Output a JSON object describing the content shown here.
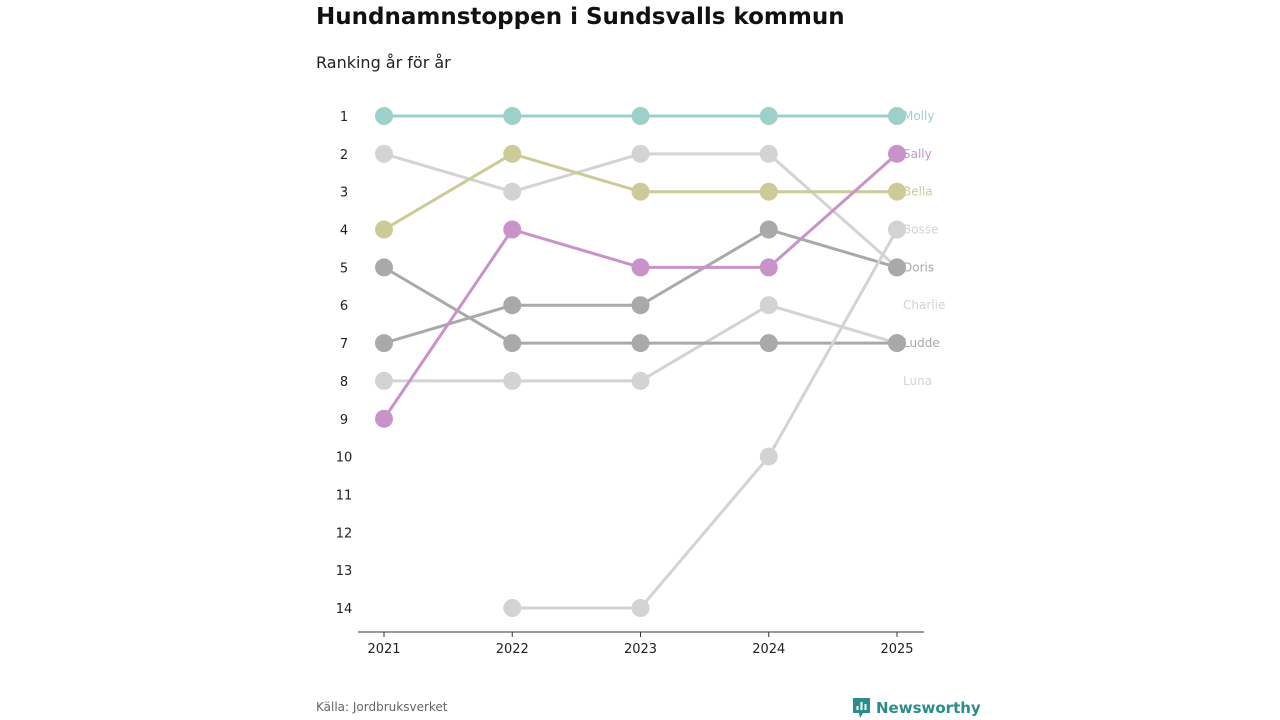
{
  "title": "Hundnamnstoppen i Sundsvalls kommun",
  "subtitle": "Ranking år för år",
  "source": "Källa: Jordbruksverket",
  "brand": "Newsworthy",
  "chart_data": {
    "type": "line",
    "subtype": "bump",
    "x": [
      "2021",
      "2022",
      "2023",
      "2024",
      "2025"
    ],
    "y_ticks": [
      "1",
      "2",
      "3",
      "4",
      "5",
      "6",
      "7",
      "8",
      "9",
      "10",
      "11",
      "12",
      "13",
      "14"
    ],
    "ylim": [
      1,
      14
    ],
    "y_inverted": true,
    "xlabel": "",
    "ylabel": "",
    "grid": false,
    "series": [
      {
        "name": "Molly",
        "values": [
          1,
          1,
          1,
          1,
          1
        ],
        "color": "#9dd0cd"
      },
      {
        "name": "Sally",
        "values": [
          9,
          4,
          5,
          5,
          2
        ],
        "color": "#c893c9"
      },
      {
        "name": "Bella",
        "values": [
          4,
          2,
          3,
          3,
          3
        ],
        "color": "#cccb98"
      },
      {
        "name": "Bosse",
        "values": [
          null,
          14,
          14,
          10,
          4
        ],
        "color": "#d3d3d3"
      },
      {
        "name": "Doris",
        "values": [
          7,
          6,
          6,
          4,
          5
        ],
        "color": "#a9a9a9"
      },
      {
        "name": "Charlie",
        "values": [
          2,
          3,
          2,
          2,
          5
        ],
        "color": "#d3d3d3"
      },
      {
        "name": "Ludde",
        "values": [
          5,
          7,
          7,
          7,
          7
        ],
        "color": "#a9a9a9"
      },
      {
        "name": "Luna",
        "values": [
          8,
          8,
          8,
          6,
          7
        ],
        "color": "#d3d3d3"
      }
    ],
    "end_labels": [
      {
        "text": "Molly",
        "color": "#9dd0cd"
      },
      {
        "text": "Sally",
        "color": "#c893c9"
      },
      {
        "text": "Bella",
        "color": "#cccb98"
      },
      {
        "text": "Bosse",
        "color": "#d3d3d3"
      },
      {
        "text": "Doris",
        "color": "#a9a9a9"
      },
      {
        "text": "Charlie",
        "color": "#d3d3d3"
      },
      {
        "text": "Ludde",
        "color": "#a9a9a9"
      },
      {
        "text": "Luna",
        "color": "#d3d3d3"
      }
    ]
  }
}
